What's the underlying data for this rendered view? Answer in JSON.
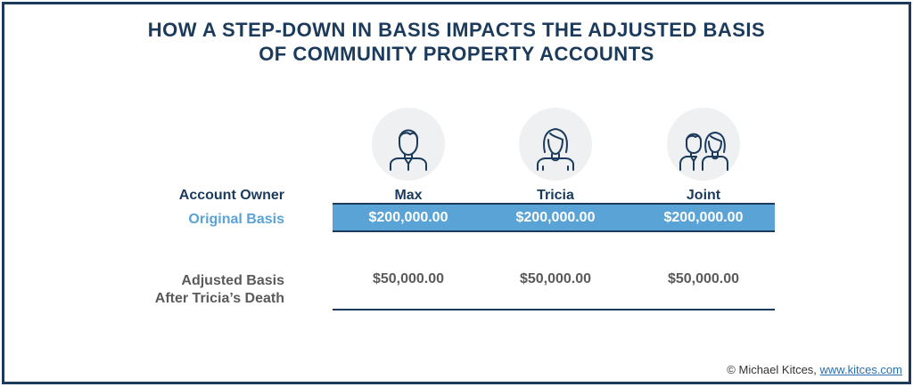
{
  "title": {
    "line1": "HOW A STEP-DOWN IN BASIS IMPACTS THE ADJUSTED BASIS",
    "line2": "OF COMMUNITY PROPERTY ACCOUNTS"
  },
  "row_labels": {
    "owner": "Account Owner",
    "original": "Original Basis",
    "adjusted_line1": "Adjusted Basis",
    "adjusted_line2": "After Tricia’s Death"
  },
  "columns": [
    {
      "name": "Max",
      "original_basis": "$200,000.00",
      "adjusted_basis": "$50,000.00",
      "icon": "man-icon"
    },
    {
      "name": "Tricia",
      "original_basis": "$200,000.00",
      "adjusted_basis": "$50,000.00",
      "icon": "woman-icon"
    },
    {
      "name": "Joint",
      "original_basis": "$200,000.00",
      "adjusted_basis": "$50,000.00",
      "icon": "couple-icon"
    }
  ],
  "credit": {
    "text": "© Michael Kitces, ",
    "link": "www.kitces.com"
  },
  "colors": {
    "navy": "#1b3a5c",
    "accent_blue": "#5aa3d6",
    "gray_text": "#5a5a5a"
  }
}
